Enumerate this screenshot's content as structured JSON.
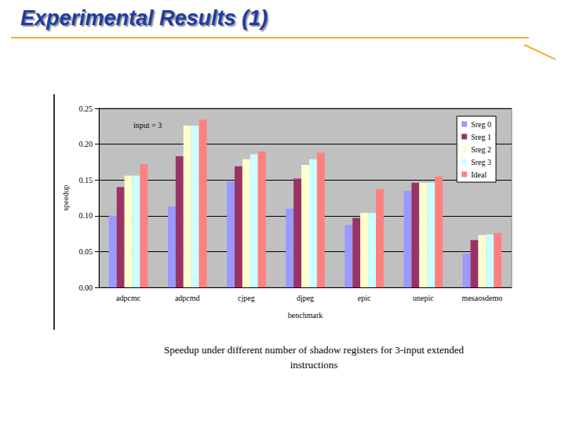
{
  "header": {
    "title": "Experimental Results (1)"
  },
  "caption": "Speedup under different number of shadow registers for 3-input extended instructions",
  "chart_data": {
    "type": "bar",
    "annotation": "input = 3",
    "x_label": "benchmark",
    "y_label": "speedup",
    "categories": [
      "adpcmc",
      "adpcmd",
      "cjpeg",
      "djpeg",
      "epic",
      "unepic",
      "mesaosdemo"
    ],
    "series": [
      {
        "name": "Sreg 0",
        "color": "#9999ff",
        "values": [
          0.1,
          0.113,
          0.148,
          0.11,
          0.087,
          0.135,
          0.047
        ]
      },
      {
        "name": "Sreg 1",
        "color": "#993366",
        "values": [
          0.14,
          0.183,
          0.169,
          0.152,
          0.097,
          0.146,
          0.066
        ]
      },
      {
        "name": "Sreg 2",
        "color": "#ffffcc",
        "values": [
          0.156,
          0.226,
          0.179,
          0.171,
          0.104,
          0.146,
          0.073
        ]
      },
      {
        "name": "Sreg 3",
        "color": "#ccffff",
        "values": [
          0.156,
          0.226,
          0.186,
          0.179,
          0.104,
          0.146,
          0.074
        ]
      },
      {
        "name": "Ideal",
        "color": "#ff8080",
        "values": [
          0.172,
          0.234,
          0.19,
          0.188,
          0.137,
          0.155,
          0.076
        ]
      }
    ],
    "ylim": [
      0,
      0.25
    ],
    "yticks": [
      {
        "value": 0,
        "label": "0.00"
      },
      {
        "value": 0.05,
        "label": "0.05"
      },
      {
        "value": 0.1,
        "label": "0.10"
      },
      {
        "value": 0.15,
        "label": "0.15"
      },
      {
        "value": 0.2,
        "label": "0.20"
      },
      {
        "value": 0.25,
        "label": "0.25"
      }
    ],
    "grid": true,
    "legend": "upper right"
  }
}
